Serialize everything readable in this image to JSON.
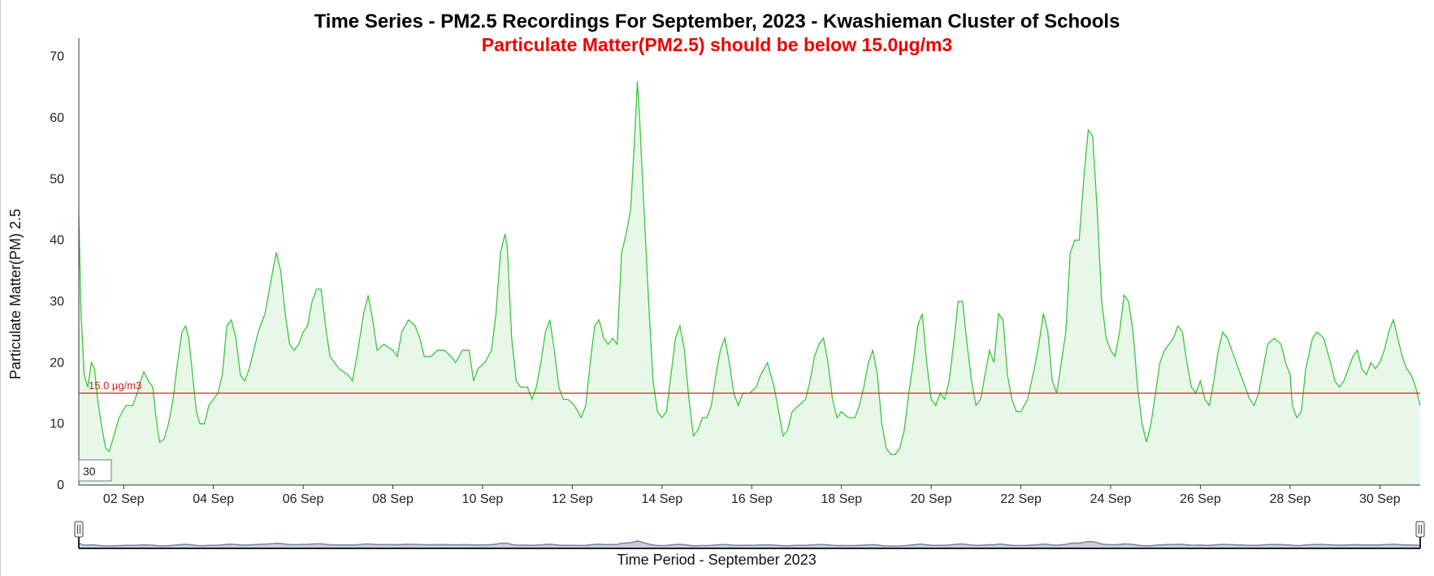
{
  "colors": {
    "line": "#3cc63c",
    "area": "#e8f8e8",
    "threshold": "#d42020",
    "axis": "#222222",
    "navigator_fill": "#c8cedd",
    "navigator_line": "#7a86a6",
    "subtitle": "#ee0000"
  },
  "chart_data": {
    "type": "area",
    "title": "Time Series - PM2.5 Recordings For September, 2023 - Kwashieman Cluster of Schools",
    "subtitle": "Particulate Matter(PM2.5) should be below 15.0µg/m3",
    "xlabel": "Time Period - September 2023",
    "ylabel": "Particulate Matter(PM) 2.5",
    "ylim": [
      0,
      73
    ],
    "xlim_days": [
      1.0,
      30.9
    ],
    "yticks": [
      0,
      10,
      20,
      30,
      40,
      50,
      60,
      70
    ],
    "xticks": [
      {
        "day": 2,
        "label": "02 Sep"
      },
      {
        "day": 4,
        "label": "04 Sep"
      },
      {
        "day": 6,
        "label": "06 Sep"
      },
      {
        "day": 8,
        "label": "08 Sep"
      },
      {
        "day": 10,
        "label": "10 Sep"
      },
      {
        "day": 12,
        "label": "12 Sep"
      },
      {
        "day": 14,
        "label": "14 Sep"
      },
      {
        "day": 16,
        "label": "16 Sep"
      },
      {
        "day": 18,
        "label": "18 Sep"
      },
      {
        "day": 20,
        "label": "20 Sep"
      },
      {
        "day": 22,
        "label": "22 Sep"
      },
      {
        "day": 24,
        "label": "24 Sep"
      },
      {
        "day": 26,
        "label": "26 Sep"
      },
      {
        "day": 28,
        "label": "28 Sep"
      },
      {
        "day": 30,
        "label": "30 Sep"
      }
    ],
    "threshold": {
      "value": 15.0,
      "label": "15.0 µg/m3"
    },
    "rolling_window": "30",
    "navigator": true,
    "series": [
      {
        "values": [
          [
            1.0,
            44
          ],
          [
            1.05,
            28
          ],
          [
            1.12,
            18
          ],
          [
            1.2,
            16
          ],
          [
            1.28,
            20
          ],
          [
            1.35,
            19
          ],
          [
            1.42,
            14
          ],
          [
            1.5,
            10
          ],
          [
            1.6,
            6
          ],
          [
            1.68,
            5.5
          ],
          [
            1.78,
            8
          ],
          [
            1.9,
            11
          ],
          [
            2.05,
            13
          ],
          [
            2.2,
            13
          ],
          [
            2.3,
            15
          ],
          [
            2.38,
            17
          ],
          [
            2.45,
            18.5
          ],
          [
            2.55,
            17
          ],
          [
            2.65,
            16
          ],
          [
            2.72,
            11
          ],
          [
            2.8,
            7
          ],
          [
            2.9,
            7.5
          ],
          [
            3.0,
            10
          ],
          [
            3.1,
            14
          ],
          [
            3.2,
            20
          ],
          [
            3.3,
            25
          ],
          [
            3.38,
            26
          ],
          [
            3.45,
            24
          ],
          [
            3.55,
            17
          ],
          [
            3.62,
            12
          ],
          [
            3.7,
            10
          ],
          [
            3.8,
            10
          ],
          [
            3.9,
            13
          ],
          [
            4.0,
            14
          ],
          [
            4.1,
            15
          ],
          [
            4.2,
            18
          ],
          [
            4.3,
            26
          ],
          [
            4.4,
            27
          ],
          [
            4.5,
            24
          ],
          [
            4.6,
            18
          ],
          [
            4.7,
            17
          ],
          [
            4.8,
            19
          ],
          [
            4.9,
            22
          ],
          [
            5.0,
            25
          ],
          [
            5.15,
            28
          ],
          [
            5.3,
            34
          ],
          [
            5.4,
            38
          ],
          [
            5.5,
            35
          ],
          [
            5.6,
            28
          ],
          [
            5.7,
            23
          ],
          [
            5.8,
            22
          ],
          [
            5.9,
            23
          ],
          [
            6.0,
            25
          ],
          [
            6.1,
            26
          ],
          [
            6.2,
            30
          ],
          [
            6.3,
            32
          ],
          [
            6.4,
            32
          ],
          [
            6.5,
            26
          ],
          [
            6.6,
            21
          ],
          [
            6.7,
            20
          ],
          [
            6.8,
            19
          ],
          [
            7.0,
            18
          ],
          [
            7.1,
            17
          ],
          [
            7.2,
            21
          ],
          [
            7.35,
            28
          ],
          [
            7.45,
            31
          ],
          [
            7.55,
            27
          ],
          [
            7.65,
            22
          ],
          [
            7.8,
            23
          ],
          [
            8.0,
            22
          ],
          [
            8.1,
            21
          ],
          [
            8.2,
            25
          ],
          [
            8.35,
            27
          ],
          [
            8.5,
            26
          ],
          [
            8.6,
            24
          ],
          [
            8.7,
            21
          ],
          [
            8.85,
            21
          ],
          [
            9.0,
            22
          ],
          [
            9.15,
            22
          ],
          [
            9.3,
            21
          ],
          [
            9.4,
            20
          ],
          [
            9.55,
            22
          ],
          [
            9.7,
            22
          ],
          [
            9.8,
            17
          ],
          [
            9.9,
            19
          ],
          [
            10.05,
            20
          ],
          [
            10.2,
            22
          ],
          [
            10.3,
            28
          ],
          [
            10.4,
            38
          ],
          [
            10.5,
            41
          ],
          [
            10.55,
            39
          ],
          [
            10.65,
            24
          ],
          [
            10.75,
            17
          ],
          [
            10.85,
            16
          ],
          [
            11.0,
            16
          ],
          [
            11.1,
            14
          ],
          [
            11.2,
            16
          ],
          [
            11.3,
            20
          ],
          [
            11.4,
            25
          ],
          [
            11.5,
            27
          ],
          [
            11.6,
            22
          ],
          [
            11.7,
            16
          ],
          [
            11.8,
            14
          ],
          [
            11.9,
            14
          ],
          [
            12.05,
            13
          ],
          [
            12.2,
            11
          ],
          [
            12.3,
            13
          ],
          [
            12.4,
            20
          ],
          [
            12.5,
            26
          ],
          [
            12.6,
            27
          ],
          [
            12.7,
            24
          ],
          [
            12.8,
            23
          ],
          [
            12.9,
            24
          ],
          [
            13.0,
            23
          ],
          [
            13.1,
            38
          ],
          [
            13.2,
            41
          ],
          [
            13.3,
            45
          ],
          [
            13.4,
            58
          ],
          [
            13.45,
            66
          ],
          [
            13.5,
            60
          ],
          [
            13.6,
            45
          ],
          [
            13.7,
            30
          ],
          [
            13.8,
            17
          ],
          [
            13.9,
            12
          ],
          [
            14.0,
            11
          ],
          [
            14.1,
            12
          ],
          [
            14.2,
            18
          ],
          [
            14.3,
            24
          ],
          [
            14.4,
            26
          ],
          [
            14.5,
            22
          ],
          [
            14.6,
            14
          ],
          [
            14.7,
            8
          ],
          [
            14.8,
            9
          ],
          [
            14.9,
            11
          ],
          [
            15.0,
            11
          ],
          [
            15.1,
            13
          ],
          [
            15.2,
            18
          ],
          [
            15.3,
            22
          ],
          [
            15.4,
            24
          ],
          [
            15.5,
            20
          ],
          [
            15.6,
            15
          ],
          [
            15.7,
            13
          ],
          [
            15.8,
            15
          ],
          [
            15.95,
            15
          ],
          [
            16.1,
            16
          ],
          [
            16.2,
            18
          ],
          [
            16.35,
            20
          ],
          [
            16.5,
            16
          ],
          [
            16.6,
            12
          ],
          [
            16.7,
            8
          ],
          [
            16.8,
            9
          ],
          [
            16.9,
            12
          ],
          [
            17.05,
            13
          ],
          [
            17.2,
            14
          ],
          [
            17.3,
            17
          ],
          [
            17.4,
            21
          ],
          [
            17.5,
            23
          ],
          [
            17.6,
            24
          ],
          [
            17.7,
            20
          ],
          [
            17.8,
            14
          ],
          [
            17.9,
            11
          ],
          [
            18.0,
            12
          ],
          [
            18.15,
            11
          ],
          [
            18.3,
            11
          ],
          [
            18.4,
            13
          ],
          [
            18.5,
            16
          ],
          [
            18.6,
            20
          ],
          [
            18.7,
            22
          ],
          [
            18.8,
            18
          ],
          [
            18.9,
            10
          ],
          [
            19.0,
            6
          ],
          [
            19.1,
            5
          ],
          [
            19.2,
            5
          ],
          [
            19.3,
            6
          ],
          [
            19.4,
            9
          ],
          [
            19.5,
            15
          ],
          [
            19.6,
            20
          ],
          [
            19.7,
            26
          ],
          [
            19.8,
            28
          ],
          [
            19.9,
            20
          ],
          [
            20.0,
            14
          ],
          [
            20.1,
            13
          ],
          [
            20.2,
            15
          ],
          [
            20.3,
            14
          ],
          [
            20.4,
            17
          ],
          [
            20.5,
            23
          ],
          [
            20.6,
            30
          ],
          [
            20.7,
            30
          ],
          [
            20.8,
            23
          ],
          [
            20.9,
            17
          ],
          [
            21.0,
            13
          ],
          [
            21.1,
            14
          ],
          [
            21.2,
            18
          ],
          [
            21.3,
            22
          ],
          [
            21.4,
            20
          ],
          [
            21.5,
            28
          ],
          [
            21.6,
            27
          ],
          [
            21.7,
            18
          ],
          [
            21.8,
            14
          ],
          [
            21.9,
            12
          ],
          [
            22.0,
            12
          ],
          [
            22.15,
            14
          ],
          [
            22.3,
            19
          ],
          [
            22.4,
            23
          ],
          [
            22.5,
            28
          ],
          [
            22.6,
            25
          ],
          [
            22.7,
            17
          ],
          [
            22.8,
            15
          ],
          [
            22.9,
            20
          ],
          [
            23.0,
            25
          ],
          [
            23.1,
            38
          ],
          [
            23.2,
            40
          ],
          [
            23.3,
            40
          ],
          [
            23.4,
            50
          ],
          [
            23.5,
            58
          ],
          [
            23.6,
            57
          ],
          [
            23.7,
            45
          ],
          [
            23.8,
            30
          ],
          [
            23.9,
            24
          ],
          [
            24.0,
            22
          ],
          [
            24.1,
            21
          ],
          [
            24.2,
            25
          ],
          [
            24.3,
            31
          ],
          [
            24.4,
            30
          ],
          [
            24.5,
            25
          ],
          [
            24.6,
            16
          ],
          [
            24.7,
            10
          ],
          [
            24.8,
            7
          ],
          [
            24.9,
            10
          ],
          [
            25.0,
            15
          ],
          [
            25.1,
            20
          ],
          [
            25.2,
            22
          ],
          [
            25.3,
            23
          ],
          [
            25.4,
            24
          ],
          [
            25.5,
            26
          ],
          [
            25.6,
            25
          ],
          [
            25.7,
            20
          ],
          [
            25.8,
            16
          ],
          [
            25.9,
            15
          ],
          [
            26.0,
            17
          ],
          [
            26.1,
            14
          ],
          [
            26.2,
            13
          ],
          [
            26.3,
            17
          ],
          [
            26.4,
            22
          ],
          [
            26.5,
            25
          ],
          [
            26.6,
            24
          ],
          [
            26.7,
            22
          ],
          [
            26.8,
            20
          ],
          [
            26.9,
            18
          ],
          [
            27.0,
            16
          ],
          [
            27.1,
            14
          ],
          [
            27.2,
            13
          ],
          [
            27.3,
            15
          ],
          [
            27.4,
            19
          ],
          [
            27.5,
            23
          ],
          [
            27.65,
            24
          ],
          [
            27.8,
            23
          ],
          [
            27.9,
            20
          ],
          [
            28.0,
            18
          ],
          [
            28.05,
            13
          ],
          [
            28.15,
            11
          ],
          [
            28.25,
            12
          ],
          [
            28.35,
            19
          ],
          [
            28.5,
            24
          ],
          [
            28.6,
            25
          ],
          [
            28.75,
            24
          ],
          [
            28.9,
            20
          ],
          [
            29.0,
            17
          ],
          [
            29.1,
            16
          ],
          [
            29.2,
            17
          ],
          [
            29.3,
            19
          ],
          [
            29.4,
            21
          ],
          [
            29.5,
            22
          ],
          [
            29.6,
            19
          ],
          [
            29.7,
            18
          ],
          [
            29.8,
            20
          ],
          [
            29.9,
            19
          ],
          [
            30.0,
            20
          ],
          [
            30.1,
            22
          ],
          [
            30.2,
            25
          ],
          [
            30.3,
            27
          ],
          [
            30.4,
            24
          ],
          [
            30.5,
            21
          ],
          [
            30.6,
            19
          ],
          [
            30.7,
            18
          ],
          [
            30.8,
            16
          ],
          [
            30.9,
            13
          ]
        ]
      }
    ]
  }
}
